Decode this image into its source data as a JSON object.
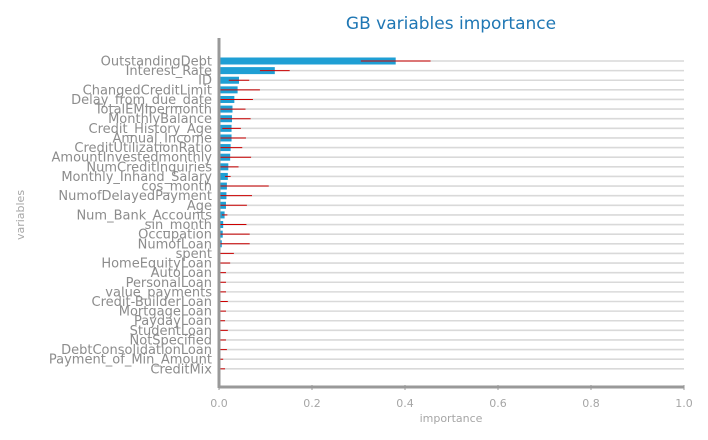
{
  "chart_data": {
    "type": "bar",
    "orientation": "horizontal",
    "title": "GB variables importance",
    "xlabel": "importance",
    "ylabel": "variables",
    "xlim": [
      0,
      1.0
    ],
    "xticks": [
      "0.0",
      "0.2",
      "0.4",
      "0.6",
      "0.8",
      "1.0"
    ],
    "grid": "horizontal",
    "bar_color": "#1f9fd4",
    "errorbar_color": "#cc0000",
    "categories": [
      "OutstandingDebt",
      "Interest_Rate",
      "ID",
      "ChangedCreditLimit",
      "Delay_from_due_date",
      "TotalEMIpermonth",
      "MonthlyBalance",
      "Credit_History_Age",
      "Annual_Income",
      "CreditUtilizationRatio",
      "AmountInvestedmonthly",
      "NumCreditInquiries",
      "Monthly_Inhand_Salary",
      "cos_month",
      "NumofDelayedPayment",
      "Age",
      "Num_Bank_Accounts",
      "sin_month",
      "Occupation",
      "NumofLoan",
      "spent",
      "HomeEquityLoan",
      "AutoLoan",
      "PersonalLoan",
      "value_payments",
      "Credit-BuilderLoan",
      "MortgageLoan",
      "PaydayLoan",
      "StudentLoan",
      "NotSpecified",
      "DebtConsolidationLoan",
      "Payment_of_Min_Amount",
      "CreditMix"
    ],
    "values": [
      0.38,
      0.12,
      0.043,
      0.04,
      0.033,
      0.029,
      0.028,
      0.027,
      0.027,
      0.025,
      0.024,
      0.02,
      0.019,
      0.017,
      0.016,
      0.015,
      0.012,
      0.009,
      0.008,
      0.006,
      0.002,
      0.002,
      0.002,
      0.001,
      0.001,
      0.001,
      0.001,
      0.001,
      0.001,
      0.001,
      0.001,
      0.001,
      0.001
    ],
    "errors": [
      0.075,
      0.032,
      0.022,
      0.048,
      0.04,
      0.028,
      0.04,
      0.02,
      0.031,
      0.025,
      0.045,
      0.022,
      0.006,
      0.09,
      0.055,
      0.045,
      0.006,
      0.05,
      0.058,
      0.06,
      0.03,
      0.022,
      0.013,
      0.014,
      0.014,
      0.018,
      0.014,
      0.012,
      0.018,
      0.014,
      0.016,
      0.008,
      0.012
    ]
  }
}
